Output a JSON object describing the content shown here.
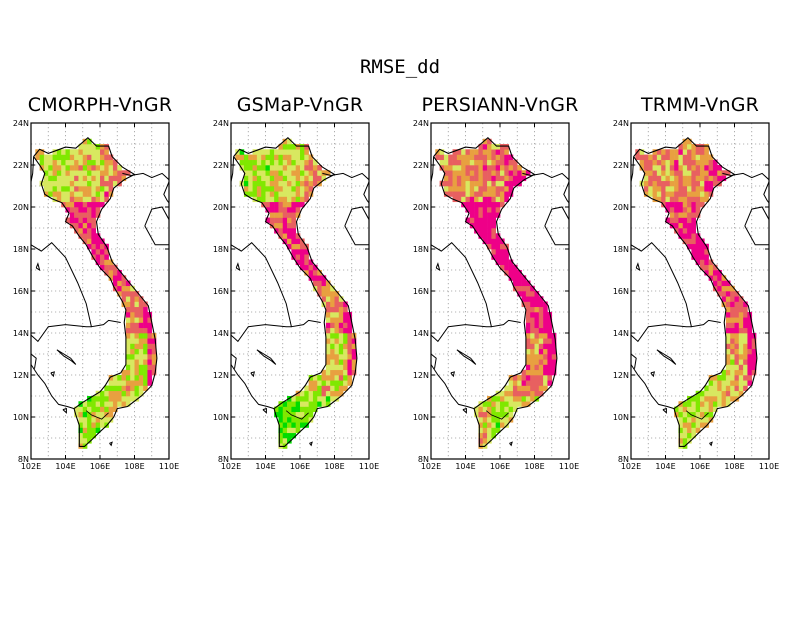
{
  "title": "RMSE_dd",
  "panels": [
    {
      "title": "CMORPH-VnGR",
      "variant": 0
    },
    {
      "title": "GSMaP-VnGR",
      "variant": 1
    },
    {
      "title": "PERSIANN-VnGR",
      "variant": 2
    },
    {
      "title": "TRMM-VnGR",
      "variant": 3
    }
  ],
  "map": {
    "lon_range": [
      102,
      110
    ],
    "lat_range": [
      8,
      24
    ],
    "lon_ticks": [
      "102E",
      "104E",
      "106E",
      "108E",
      "110E"
    ],
    "lat_ticks": [
      "24N",
      "22N",
      "20N",
      "18N",
      "16N",
      "14N",
      "12N",
      "10N",
      "8N"
    ],
    "gridlines": "dotted",
    "colors": {
      "low": "#00dc00",
      "low_mid": "#80e800",
      "mid": "#d8e860",
      "mid_high": "#e8a040",
      "high": "#e86060",
      "very_high": "#ee0088",
      "coast": "#000000"
    }
  }
}
